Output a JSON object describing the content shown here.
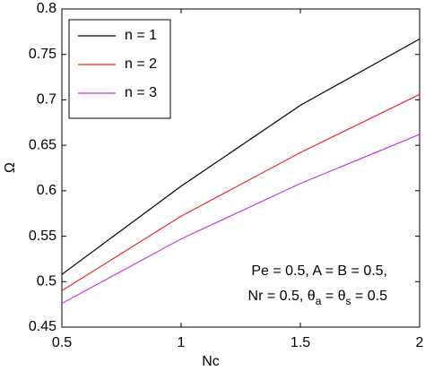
{
  "chart_data": {
    "type": "line",
    "x": [
      0.5,
      1,
      1.5,
      2
    ],
    "series": [
      {
        "name": "n = 1",
        "color": "#000000",
        "values": [
          0.508,
          0.605,
          0.694,
          0.767
        ]
      },
      {
        "name": "n = 2",
        "color": "#e8262a",
        "values": [
          0.49,
          0.572,
          0.642,
          0.706
        ]
      },
      {
        "name": "n = 3",
        "color": "#c43bdc",
        "values": [
          0.476,
          0.547,
          0.608,
          0.662
        ]
      }
    ],
    "xlabel": "Nc",
    "ylabel": "Ω",
    "xlim": [
      0.5,
      2
    ],
    "xticks": [
      0.5,
      1,
      1.5,
      2
    ],
    "ylim": [
      0.45,
      0.8
    ],
    "yticks": [
      0.45,
      0.5,
      0.55,
      0.6,
      0.65,
      0.7,
      0.75,
      0.8
    ],
    "annotations": [
      "Pe = 0.5, A = B = 0.5,",
      [
        "Nr = 0.5, θ",
        "a",
        " = θ",
        "s",
        " = 0.5"
      ]
    ],
    "legend": "upper left"
  }
}
